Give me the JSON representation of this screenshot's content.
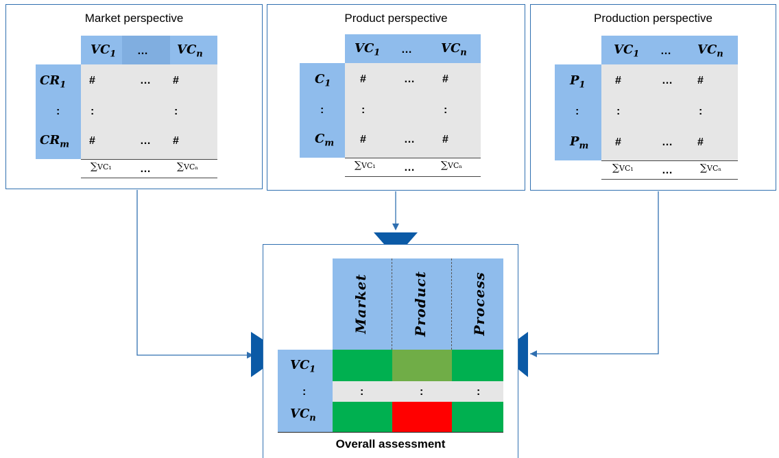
{
  "panels": {
    "market": {
      "title": "Market perspective",
      "col_first": "VC",
      "col_first_sub": "1",
      "col_dots": "…",
      "col_last": "VC",
      "col_last_sub": "n",
      "row_first": "CR",
      "row_first_sub": "1",
      "row_mid": ":",
      "row_last": "CR",
      "row_last_sub": "m",
      "hash": "#",
      "dots": "…",
      "colon": ":",
      "sum_sigma": "∑",
      "sum_first": "VC₁",
      "sum_last": "VCₙ"
    },
    "product": {
      "title": "Product perspective",
      "col_first": "VC",
      "col_first_sub": "1",
      "col_dots": "…",
      "col_last": "VC",
      "col_last_sub": "n",
      "row_first": "C",
      "row_first_sub": "1",
      "row_mid": ":",
      "row_last": "C",
      "row_last_sub": "m",
      "hash": "#",
      "dots": "…",
      "colon": ":",
      "sum_sigma": "∑",
      "sum_first": "VC₁",
      "sum_last": "VCₙ"
    },
    "production": {
      "title": "Production perspective",
      "col_first": "VC",
      "col_first_sub": "1",
      "col_dots": "…",
      "col_last": "VC",
      "col_last_sub": "n",
      "row_first": "P",
      "row_first_sub": "1",
      "row_mid": ":",
      "row_last": "P",
      "row_last_sub": "m",
      "hash": "#",
      "dots": "…",
      "colon": ":",
      "sum_sigma": "∑",
      "sum_first": "VC₁",
      "sum_last": "VCₙ"
    }
  },
  "overall": {
    "title": "Overall assessment",
    "columns": [
      "Market",
      "Product",
      "Process"
    ],
    "row_first": "VC",
    "row_first_sub": "1",
    "row_mid": ":",
    "row_last": "VC",
    "row_last_sub": "n",
    "colon": ":",
    "colors": {
      "green": "#00b050",
      "light_green": "#70ad47",
      "red": "#ff0000",
      "blue_header": "#8fbcec",
      "grey": "#e6e6e6",
      "connector": "#2f6fb0",
      "arrowhead": "#0b5aa6"
    },
    "cell_status": [
      [
        "green",
        "light_green",
        "green"
      ],
      [
        "green",
        "red",
        "green"
      ]
    ]
  }
}
